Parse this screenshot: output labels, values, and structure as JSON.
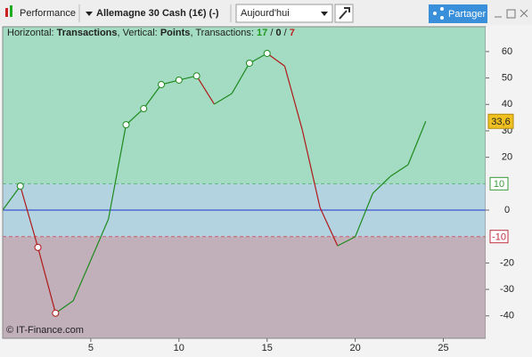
{
  "toolbar": {
    "panel": "Performance",
    "instrument": "Allemagne 30 Cash (1€) (-)",
    "period": "Aujourd'hui",
    "share": "Partager"
  },
  "chart_data": {
    "type": "line",
    "info": {
      "horizontal": "Horizontal:",
      "x_name": "Transactions",
      "vertical": ", Vertical:",
      "y_name": "Points",
      "count_label": ", Transactions:",
      "wins": 17,
      "neutral": 0,
      "losses": 7,
      "up_color": "#1e9a1e",
      "down_color": "#c02020"
    },
    "x": [
      0,
      1,
      2,
      3,
      4,
      5,
      6,
      7,
      8,
      9,
      10,
      11,
      12,
      13,
      14,
      15,
      16,
      17,
      18,
      19,
      20,
      21,
      22,
      23,
      24
    ],
    "series": [
      {
        "values": [
          0,
          9.1,
          -14.1,
          -39,
          -34.3,
          -18.9,
          -3.4,
          32.3,
          38.4,
          47.5,
          49.2,
          50.8,
          40.1,
          44.1,
          55.6,
          59.3,
          54.5,
          30.3,
          1,
          -13.5,
          -10.1,
          6.4,
          12.8,
          17.2,
          33.6
        ]
      }
    ],
    "up_color": "#1e8a1e",
    "down_color": "#b01818",
    "marker_indices": [
      1,
      2,
      3,
      7,
      8,
      9,
      10,
      11,
      14,
      15
    ],
    "xlim": [
      0,
      27.4
    ],
    "xticks": [
      5,
      10,
      15,
      20,
      25
    ],
    "ylim": [
      -48.5,
      69.4
    ],
    "yticks": [
      -40,
      -30,
      -20,
      0,
      20,
      30,
      40,
      50,
      60
    ],
    "upper_threshold": 10,
    "lower_threshold": -10,
    "zero_line": 0,
    "zone_colors": {
      "upper": "#a3dcc2",
      "middle": "#b3d3e0",
      "lower": "#c1afb9"
    },
    "current_value": {
      "value": 33.6,
      "label": "33,6"
    },
    "watermark": "© IT-Finance.com"
  }
}
